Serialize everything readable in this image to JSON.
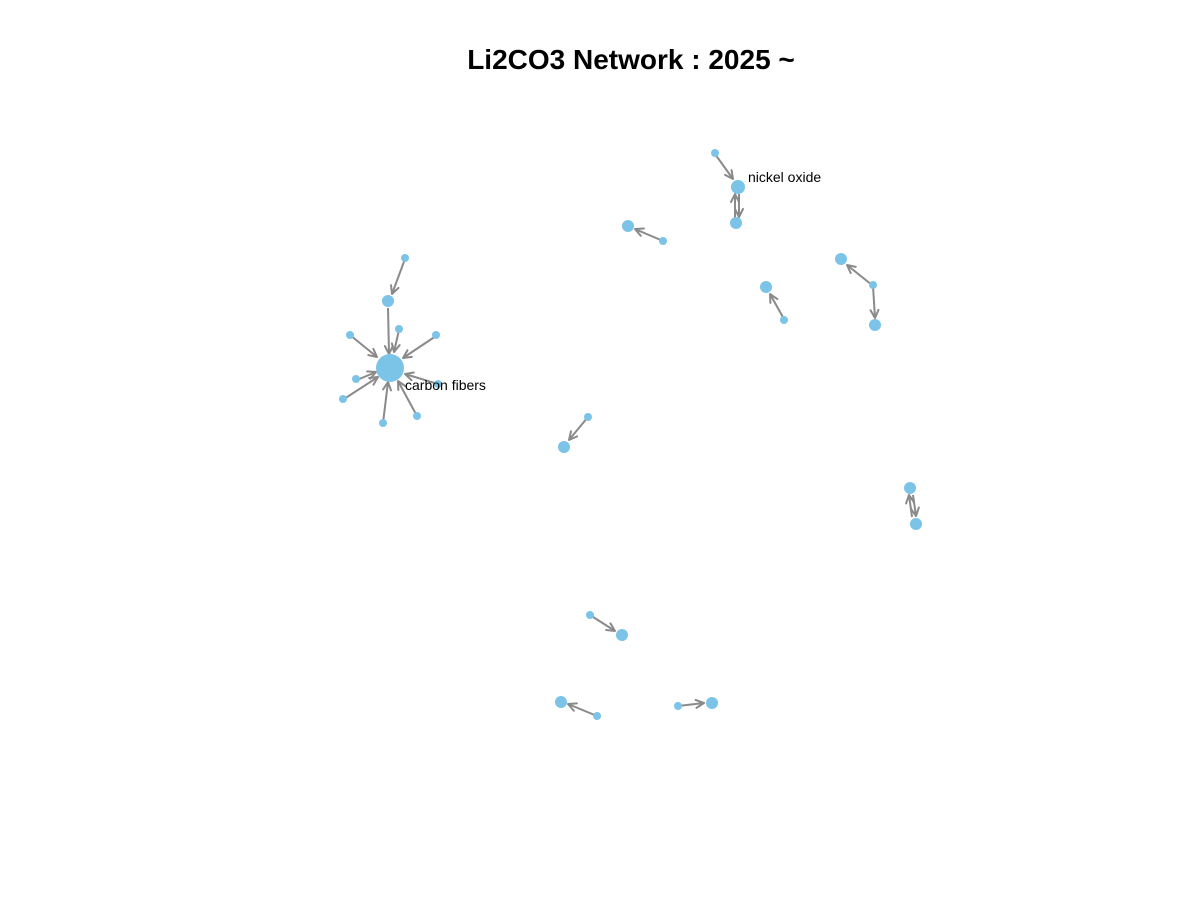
{
  "title": "Li2CO3 Network : 2025 ~",
  "colors": {
    "node": "#7cc3e8",
    "edge": "#8a8a8a",
    "label": "#000000"
  },
  "labels": {
    "carbon_fibers": "carbon fibers",
    "nickel_oxide": "nickel oxide"
  }
}
